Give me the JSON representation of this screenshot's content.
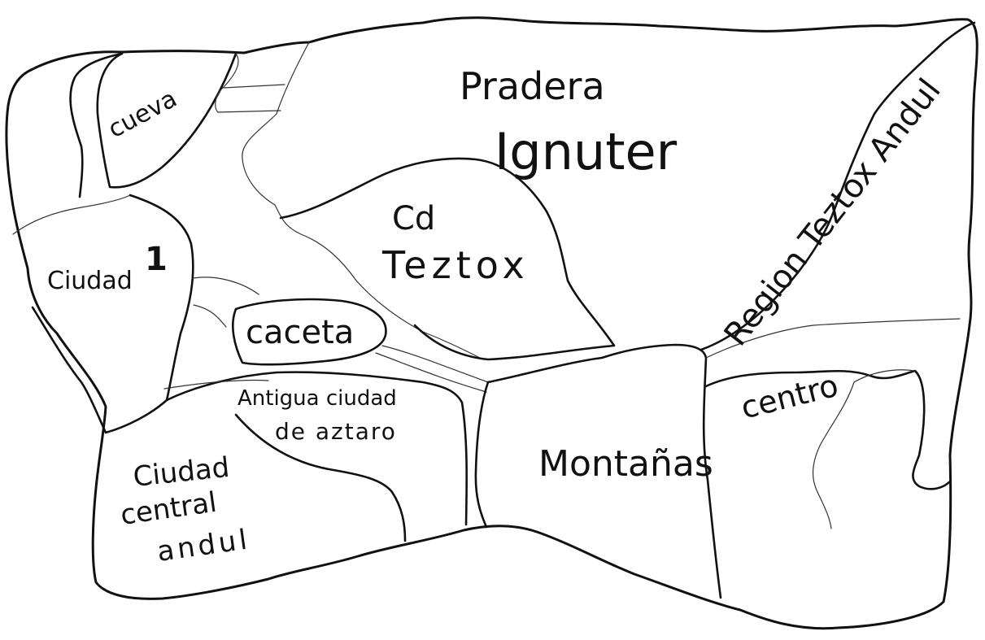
{
  "map": {
    "regions": {
      "cueva": "cueva",
      "pradera_line1": "Pradera",
      "pradera_line2": "Ignuter",
      "cd_teztox_line1": "Cd",
      "cd_teztox_line2": "Teztox",
      "region_teztox": "Region Teztox Andul",
      "ciudad1_word": "Ciudad",
      "ciudad1_number": "1",
      "caceta": "caceta",
      "antigua_line1": "Antigua ciudad",
      "antigua_line2": "de aztaro",
      "centro": "centro",
      "montanas": "Montañas",
      "ciudad_central_line1": "Ciudad",
      "ciudad_central_line2": "central",
      "ciudad_central_line3": "andul"
    },
    "colors": {
      "ink": "#111111",
      "paper": "#ffffff"
    }
  }
}
